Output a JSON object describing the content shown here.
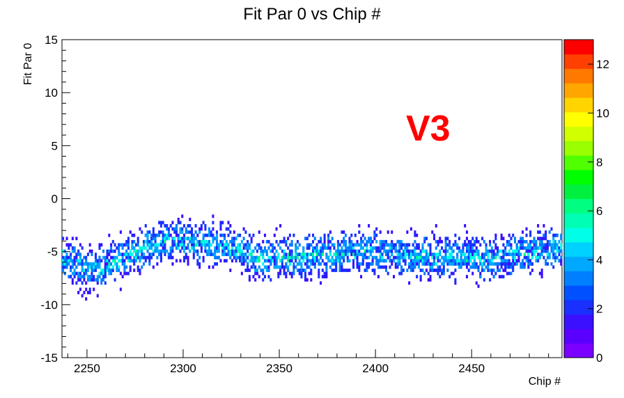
{
  "chart_data": {
    "type": "heatmap",
    "title": "Fit Par 0 vs Chip #",
    "xlabel": "Chip #",
    "ylabel": "Fit Par 0",
    "xlim": [
      2237,
      2497
    ],
    "ylim": [
      -15,
      15
    ],
    "x_ticks": [
      2250,
      2300,
      2350,
      2400,
      2450
    ],
    "y_ticks": [
      -15,
      -10,
      -5,
      0,
      5,
      10,
      15
    ],
    "colorbar": {
      "range": [
        0,
        13
      ],
      "ticks": [
        0,
        2,
        4,
        6,
        8,
        10,
        12
      ],
      "palette": [
        "#7a00ff",
        "#5a00ff",
        "#3a10ff",
        "#1a30ff",
        "#0050ff",
        "#0080ff",
        "#00a8ff",
        "#00d2ff",
        "#00ffe6",
        "#00ffb4",
        "#00ff80",
        "#00f040",
        "#00ff00",
        "#50ff00",
        "#9aff00",
        "#d2ff00",
        "#ffff00",
        "#ffd400",
        "#ffa600",
        "#ff7800",
        "#ff4000",
        "#ff0000"
      ]
    },
    "annotation": {
      "text": "V3",
      "color": "#ff0000"
    },
    "profile": {
      "x": [
        2237,
        2245,
        2250,
        2255,
        2262,
        2270,
        2280,
        2290,
        2300,
        2310,
        2320,
        2328,
        2332,
        2340,
        2350,
        2360,
        2370,
        2380,
        2390,
        2400,
        2410,
        2420,
        2430,
        2440,
        2450,
        2460,
        2470,
        2480,
        2490,
        2497
      ],
      "mean": [
        -5.5,
        -6.3,
        -6.8,
        -6.6,
        -6.2,
        -5.5,
        -4.6,
        -4.1,
        -4.0,
        -4.1,
        -4.4,
        -4.7,
        -5.3,
        -5.7,
        -5.6,
        -5.5,
        -5.3,
        -5.2,
        -5.0,
        -5.1,
        -5.2,
        -5.4,
        -5.5,
        -5.4,
        -5.6,
        -5.8,
        -5.3,
        -5.0,
        -4.8,
        -4.5
      ]
    }
  }
}
